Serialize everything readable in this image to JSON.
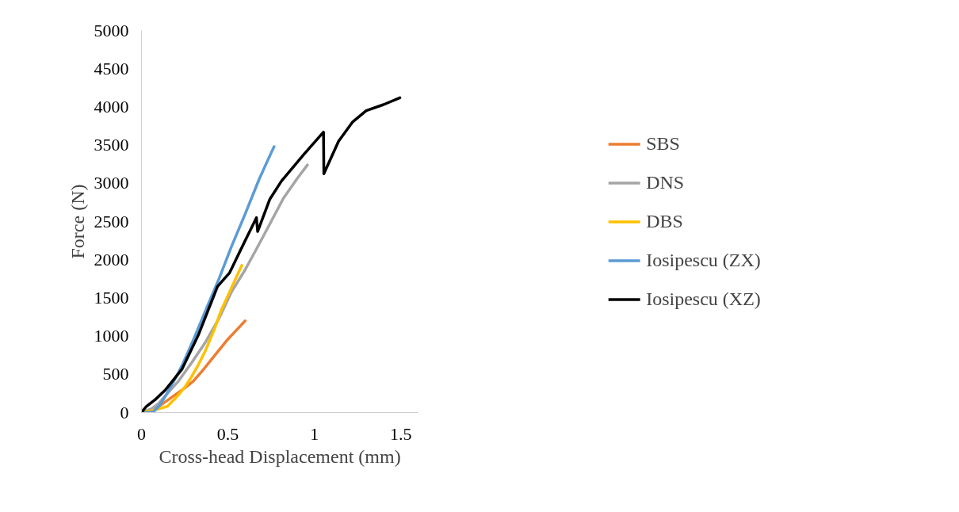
{
  "chart_data": {
    "type": "line",
    "xlabel": "Cross-head Displacement (mm)",
    "ylabel": "Force (N)",
    "xlim": [
      0,
      1.6
    ],
    "ylim": [
      0,
      5000
    ],
    "xticks": [
      0,
      0.5,
      1,
      1.5
    ],
    "yticks": [
      0,
      500,
      1000,
      1500,
      2000,
      2500,
      3000,
      3500,
      4000,
      4500,
      5000
    ],
    "grid": false,
    "legend": "right",
    "marker": "none",
    "line_style": "solid",
    "series": [
      {
        "name": "SBS",
        "color": "#ed7d31",
        "x": [
          0,
          0.05,
          0.1,
          0.15,
          0.2,
          0.25,
          0.3,
          0.35,
          0.4,
          0.45,
          0.5,
          0.55,
          0.6
        ],
        "values": [
          0,
          30,
          80,
          160,
          240,
          320,
          410,
          540,
          680,
          820,
          960,
          1080,
          1200
        ]
      },
      {
        "name": "DNS",
        "color": "#a5a5a5",
        "x": [
          0,
          0.06,
          0.1,
          0.15,
          0.21,
          0.29,
          0.37,
          0.45,
          0.52,
          0.6,
          0.67,
          0.75,
          0.82,
          0.9,
          0.96
        ],
        "values": [
          0,
          50,
          120,
          250,
          400,
          650,
          920,
          1240,
          1575,
          1870,
          2160,
          2500,
          2800,
          3060,
          3240
        ]
      },
      {
        "name": "DBS",
        "color": "#ffc000",
        "x": [
          0,
          0.07,
          0.15,
          0.21,
          0.25,
          0.29,
          0.33,
          0.37,
          0.42,
          0.46,
          0.52,
          0.58
        ],
        "values": [
          0,
          30,
          80,
          220,
          330,
          470,
          630,
          810,
          1080,
          1330,
          1630,
          1925
        ]
      },
      {
        "name": "Iosipescu (ZX)",
        "color": "#5b9bd5",
        "x": [
          0,
          0.04,
          0.07,
          0.1,
          0.14,
          0.19,
          0.24,
          0.3,
          0.37,
          0.45,
          0.52,
          0.6,
          0.68,
          0.73,
          0.767
        ],
        "values": [
          0,
          0,
          10,
          80,
          220,
          420,
          640,
          950,
          1330,
          1760,
          2170,
          2600,
          3050,
          3300,
          3480
        ]
      },
      {
        "name": "Iosipescu (XZ)",
        "color": "#000000",
        "x": [
          0,
          0.028,
          0.08,
          0.136,
          0.235,
          0.33,
          0.44,
          0.51,
          0.6,
          0.665,
          0.672,
          0.742,
          0.81,
          0.94,
          1.053,
          1.055,
          1.14,
          1.22,
          1.3,
          1.4,
          1.495
        ],
        "values": [
          0,
          80,
          170,
          290,
          570,
          1020,
          1650,
          1830,
          2250,
          2550,
          2370,
          2790,
          3030,
          3380,
          3670,
          3125,
          3550,
          3800,
          3950,
          4030,
          4120
        ]
      }
    ]
  }
}
